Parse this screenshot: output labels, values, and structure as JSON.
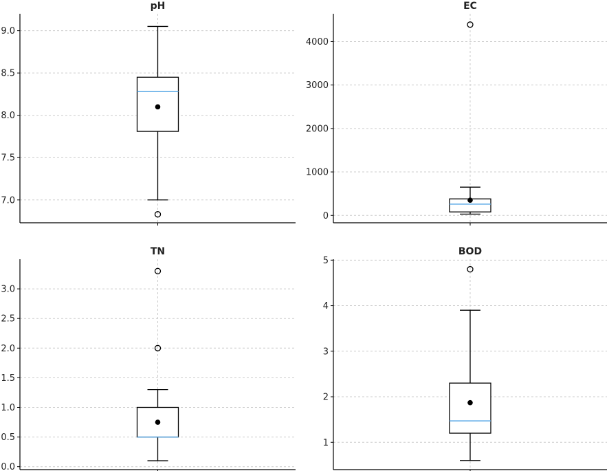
{
  "chart_data": [
    {
      "type": "box",
      "title": "pH",
      "ylim": [
        6.73,
        9.2
      ],
      "yticks": [
        7.0,
        7.5,
        8.0,
        8.5,
        9.0
      ],
      "ytick_labels": [
        "7.0",
        "7.5",
        "8.0",
        "8.5",
        "9.0"
      ],
      "grid": true,
      "box": {
        "whisker_low": 7.0,
        "q1": 7.81,
        "median": 8.28,
        "q3": 8.45,
        "whisker_high": 9.05,
        "mean": 8.1,
        "outliers": [
          6.83
        ]
      }
    },
    {
      "type": "box",
      "title": "EC",
      "ylim": [
        -170,
        4640
      ],
      "yticks": [
        0,
        1000,
        2000,
        3000,
        4000
      ],
      "ytick_labels": [
        "0",
        "1000",
        "2000",
        "3000",
        "4000"
      ],
      "grid": true,
      "box": {
        "whisker_low": 30,
        "q1": 80,
        "median": 260,
        "q3": 380,
        "whisker_high": 650,
        "mean": 350,
        "outliers": [
          4390
        ]
      }
    },
    {
      "type": "box",
      "title": "TN",
      "ylim": [
        -0.05,
        3.5
      ],
      "yticks": [
        0.0,
        0.5,
        1.0,
        1.5,
        2.0,
        2.5,
        3.0
      ],
      "ytick_labels": [
        "0.0",
        "0.5",
        "1.0",
        "1.5",
        "2.0",
        "2.5",
        "3.0"
      ],
      "grid": true,
      "box": {
        "whisker_low": 0.1,
        "q1": 0.5,
        "median": 0.5,
        "q3": 1.0,
        "whisker_high": 1.3,
        "mean": 0.75,
        "outliers": [
          2.0,
          3.3
        ]
      }
    },
    {
      "type": "box",
      "title": "BOD",
      "ylim": [
        0.4,
        5.02
      ],
      "yticks": [
        1,
        2,
        3,
        4,
        5
      ],
      "ytick_labels": [
        "1",
        "2",
        "3",
        "4",
        "5"
      ],
      "grid": true,
      "box": {
        "whisker_low": 0.6,
        "q1": 1.2,
        "median": 1.47,
        "q3": 2.3,
        "whisker_high": 3.9,
        "mean": 1.87,
        "outliers": [
          4.8
        ]
      }
    }
  ],
  "colors": {
    "median_line": "#5aa9e6",
    "box_stroke": "#000000",
    "grid": "#cccccc",
    "mean_marker": "#000000",
    "axis": "#000000"
  }
}
